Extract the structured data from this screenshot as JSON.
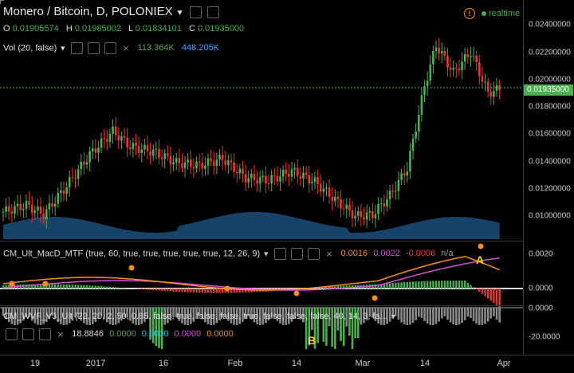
{
  "header": {
    "title": "Monero / Bitcoin, D, POLONIEX",
    "ohlc": {
      "o_label": "O",
      "o": "0.01905574",
      "h_label": "H",
      "h": "0.01985002",
      "l_label": "L",
      "l": "0.01834101",
      "c_label": "C",
      "c": "0.01935000"
    },
    "volume": {
      "label": "Vol (20, false)",
      "v1": "113.364K",
      "v2": "448.205K"
    },
    "realtime": "realtime"
  },
  "price_axis": {
    "ticks": [
      "0.02400000",
      "0.02200000",
      "0.02000000",
      "0.01800000",
      "0.01600000",
      "0.01400000",
      "0.01200000",
      "0.01000000"
    ],
    "current": "0.01935000"
  },
  "macd": {
    "label": "CM_Ult_MacD_MTF (true, 60, true, true, true, true, true, 12, 26, 9)",
    "v1": "0.0016",
    "v2": "0.0022",
    "v3": "-0.0006",
    "v4": "n/a",
    "ticks": [
      "0.0020",
      "0.0000"
    ]
  },
  "wvf": {
    "label": "CM_WVF_V3_Ult (22, 20, 2, 50, 0.85, false, true, false, false, true, false, false, false, 40, 14, 3, fa...",
    "v1": "18.8846",
    "v2": "0.0000",
    "v3": "0.0000",
    "v4": "0.0000",
    "v5": "0.0000",
    "ticks": [
      "0.0000",
      "-20.0000"
    ]
  },
  "time_axis": [
    "19",
    "2017",
    "16",
    "Feb",
    "14",
    "Mar",
    "14",
    "Apr"
  ],
  "annotations": {
    "a": "A",
    "b": "B"
  },
  "colors": {
    "up": "#4caf50",
    "down": "#e53935",
    "macd_line": "#ff8c1a",
    "signal_line": "#d64fd6",
    "volume": "#1e5a8a"
  }
}
